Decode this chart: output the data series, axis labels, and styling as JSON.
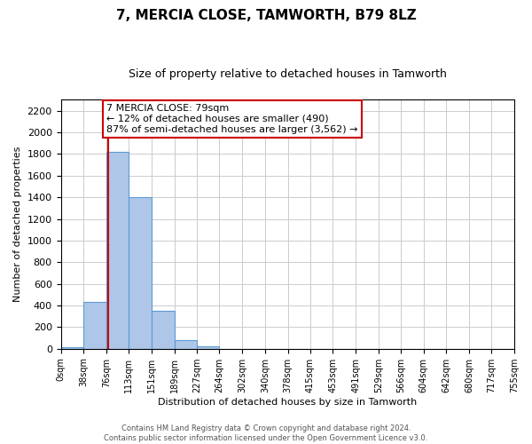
{
  "title": "7, MERCIA CLOSE, TAMWORTH, B79 8LZ",
  "subtitle": "Size of property relative to detached houses in Tamworth",
  "xlabel": "Distribution of detached houses by size in Tamworth",
  "ylabel": "Number of detached properties",
  "bar_edges": [
    0,
    38,
    76,
    113,
    151,
    189,
    227,
    264,
    302,
    340,
    378,
    415,
    453,
    491,
    529,
    566,
    604,
    642,
    680,
    717,
    755
  ],
  "bar_heights": [
    15,
    430,
    1820,
    1400,
    350,
    80,
    25,
    0,
    0,
    0,
    0,
    0,
    0,
    0,
    0,
    0,
    0,
    0,
    0,
    0
  ],
  "bar_color": "#aec6e8",
  "bar_edge_color": "#5b9bd5",
  "property_line_x": 79,
  "property_line_color": "#cc0000",
  "annotation_title": "7 MERCIA CLOSE: 79sqm",
  "annotation_line1": "← 12% of detached houses are smaller (490)",
  "annotation_line2": "87% of semi-detached houses are larger (3,562) →",
  "annotation_box_color": "#ffffff",
  "annotation_box_edge": "#cc0000",
  "ylim": [
    0,
    2300
  ],
  "yticks": [
    0,
    200,
    400,
    600,
    800,
    1000,
    1200,
    1400,
    1600,
    1800,
    2000,
    2200
  ],
  "xtick_labels": [
    "0sqm",
    "38sqm",
    "76sqm",
    "113sqm",
    "151sqm",
    "189sqm",
    "227sqm",
    "264sqm",
    "302sqm",
    "340sqm",
    "378sqm",
    "415sqm",
    "453sqm",
    "491sqm",
    "529sqm",
    "566sqm",
    "604sqm",
    "642sqm",
    "680sqm",
    "717sqm",
    "755sqm"
  ],
  "footer1": "Contains HM Land Registry data © Crown copyright and database right 2024.",
  "footer2": "Contains public sector information licensed under the Open Government Licence v3.0.",
  "bg_color": "#ffffff",
  "grid_color": "#cccccc",
  "title_fontsize": 11,
  "subtitle_fontsize": 9,
  "ylabel_fontsize": 8,
  "xlabel_fontsize": 8,
  "ytick_fontsize": 8,
  "xtick_fontsize": 7,
  "annotation_fontsize": 8,
  "footer_fontsize": 6
}
